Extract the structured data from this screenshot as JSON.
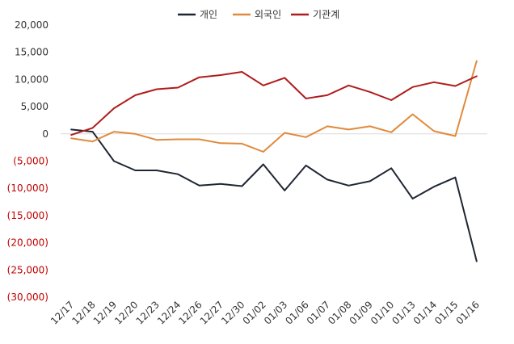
{
  "chart_data": {
    "type": "line",
    "categories": [
      "12/17",
      "12/18",
      "12/19",
      "12/20",
      "12/23",
      "12/24",
      "12/26",
      "12/27",
      "12/30",
      "01/02",
      "01/03",
      "01/06",
      "01/07",
      "01/08",
      "01/09",
      "01/10",
      "01/13",
      "01/14",
      "01/15",
      "01/16"
    ],
    "series": [
      {
        "name": "개인",
        "color": "#1f2633",
        "values": [
          800,
          400,
          -5000,
          -6700,
          -6700,
          -7400,
          -9500,
          -9200,
          -9600,
          -5600,
          -10400,
          -5800,
          -8400,
          -9500,
          -8700,
          -6300,
          -11900,
          -9700,
          -8000,
          -23400
        ]
      },
      {
        "name": "외국인",
        "color": "#e08a3c",
        "values": [
          -800,
          -1400,
          400,
          0,
          -1100,
          -1000,
          -1000,
          -1700,
          -1800,
          -3300,
          200,
          -600,
          1400,
          800,
          1400,
          300,
          3600,
          500,
          -400,
          13400
        ]
      },
      {
        "name": "기관계",
        "color": "#b01c1c",
        "values": [
          -200,
          1100,
          4700,
          7100,
          8200,
          8500,
          10400,
          10800,
          11400,
          8900,
          10300,
          6500,
          7100,
          8900,
          7700,
          6200,
          8600,
          9500,
          8800,
          10600
        ]
      }
    ],
    "yticks": [
      {
        "value": 20000,
        "label": "20,000"
      },
      {
        "value": 15000,
        "label": "15,000"
      },
      {
        "value": 10000,
        "label": "10,000"
      },
      {
        "value": 5000,
        "label": "5,000"
      },
      {
        "value": 0,
        "label": "0"
      },
      {
        "value": -5000,
        "label": "(5,000)"
      },
      {
        "value": -10000,
        "label": "(10,000)"
      },
      {
        "value": -15000,
        "label": "(15,000)"
      },
      {
        "value": -20000,
        "label": "(20,000)"
      },
      {
        "value": -25000,
        "label": "(25,000)"
      },
      {
        "value": -30000,
        "label": "(30,000)"
      }
    ],
    "ylim": [
      -30000,
      20000
    ],
    "negative_label_color": "#c00000",
    "positive_label_color": "#333333",
    "legend_position": "top-center",
    "title": "",
    "xlabel": "",
    "ylabel": ""
  }
}
